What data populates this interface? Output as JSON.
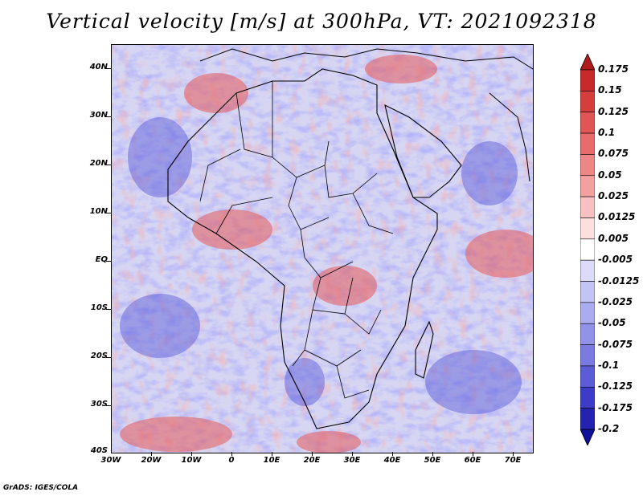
{
  "title": "Vertical velocity [m/s] at 300hPa, VT: 2021092318",
  "footer": "GrADS: IGES/COLA",
  "lat_labels": [
    "40N",
    "30N",
    "20N",
    "10N",
    "EQ",
    "10S",
    "20S",
    "30S",
    "40S"
  ],
  "lon_labels": [
    "30W",
    "20W",
    "10W",
    "0",
    "10E",
    "20E",
    "30E",
    "40E",
    "50E",
    "60E",
    "70E"
  ],
  "colorbar": {
    "labels": [
      "0.175",
      "0.15",
      "0.125",
      "0.1",
      "0.075",
      "0.05",
      "0.025",
      "0.0125",
      "0.005",
      "-0.005",
      "-0.0125",
      "-0.025",
      "-0.05",
      "-0.075",
      "-0.1",
      "-0.125",
      "-0.175",
      "-0.2"
    ],
    "colors": [
      "#b01c1c",
      "#c62a2a",
      "#d63e3e",
      "#e05656",
      "#e86c6c",
      "#ef8686",
      "#f4a0a0",
      "#f8c0c0",
      "#fce0e0",
      "#ffffff",
      "#dcdcf8",
      "#c4c4f4",
      "#ababef",
      "#9292e8",
      "#7a7ae0",
      "#5c5cd6",
      "#3c3cc8",
      "#2323b0",
      "#10109a"
    ]
  },
  "map": {
    "lon_range": [
      -30,
      75
    ],
    "lat_range": [
      -40,
      45
    ],
    "variable": "Vertical velocity",
    "units": "m/s",
    "level": "300hPa",
    "valid_time": "2021092318",
    "background_color": "#d6d6f3"
  }
}
